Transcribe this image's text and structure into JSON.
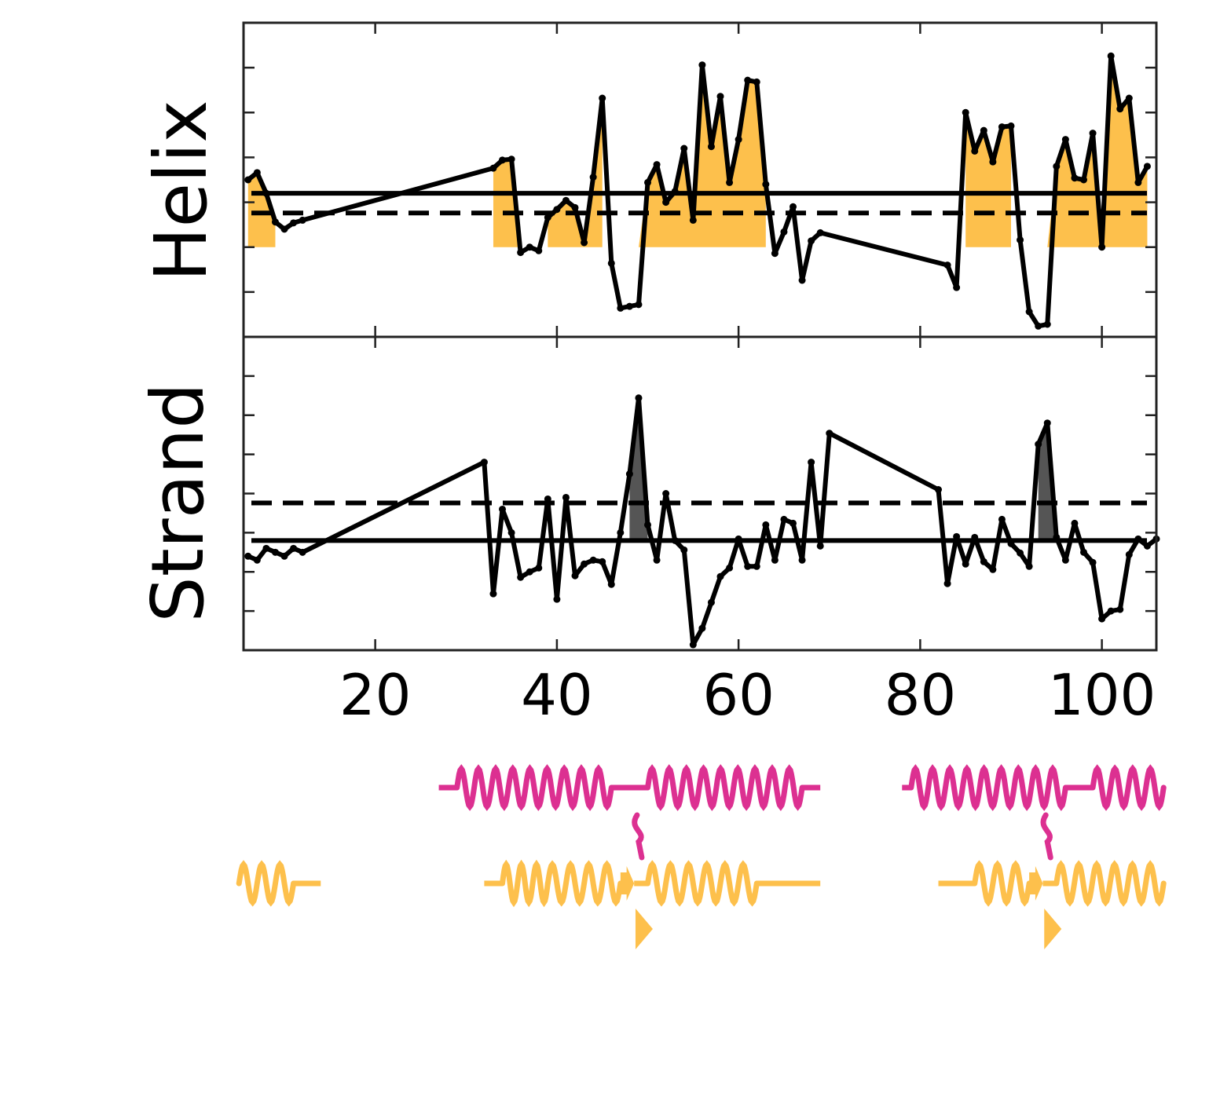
{
  "chart_data": [
    {
      "type": "line",
      "ylabel": "Helix",
      "xlim": [
        5.5,
        106
      ],
      "ylim": [
        -1.0,
        2.5
      ],
      "y_ticks": [
        -0.5,
        0,
        0.5,
        1.0,
        1.5,
        2.0
      ],
      "show_y_tick_labels": false,
      "x": [
        6,
        7,
        8,
        9,
        10,
        11,
        12,
        33,
        34,
        35,
        36,
        37,
        38,
        39,
        40,
        41,
        42,
        43,
        44,
        45,
        46,
        47,
        48,
        49,
        50,
        51,
        52,
        53,
        54,
        55,
        56,
        57,
        58,
        59,
        60,
        61,
        62,
        63,
        64,
        65,
        66,
        67,
        68,
        69,
        83,
        84,
        85,
        86,
        87,
        88,
        89,
        90,
        91,
        92,
        93,
        94,
        95,
        96,
        97,
        98,
        99,
        100,
        101,
        102,
        103,
        104,
        105
      ],
      "values": [
        0.75,
        0.83,
        0.6,
        0.28,
        0.2,
        0.27,
        0.3,
        0.88,
        0.97,
        0.98,
        -0.06,
        0.0,
        -0.04,
        0.33,
        0.42,
        0.52,
        0.44,
        0.05,
        0.78,
        1.66,
        -0.18,
        -0.68,
        -0.66,
        -0.64,
        0.72,
        0.92,
        0.5,
        0.62,
        1.1,
        0.3,
        2.03,
        1.12,
        1.68,
        0.72,
        1.2,
        1.86,
        1.84,
        0.7,
        -0.07,
        0.17,
        0.45,
        -0.37,
        0.07,
        0.16,
        -0.2,
        -0.45,
        1.5,
        1.07,
        1.3,
        0.95,
        1.34,
        1.35,
        0.08,
        -0.72,
        -0.88,
        -0.86,
        0.9,
        1.2,
        0.77,
        0.75,
        1.27,
        0.0,
        2.13,
        1.54,
        1.66,
        0.72,
        0.9
      ],
      "reference_lines": [
        {
          "y": 0.6,
          "style": "solid"
        },
        {
          "y": 0.38,
          "style": "dashed"
        }
      ],
      "fill_threshold": 0.0,
      "fill_regions_x": [
        [
          6,
          9
        ],
        [
          33,
          36
        ],
        [
          39,
          45
        ],
        [
          49,
          63
        ],
        [
          85,
          90
        ],
        [
          94,
          105
        ]
      ],
      "fill_color": "#fdc04c",
      "line_color": "#000000"
    },
    {
      "type": "line",
      "ylabel": "Strand",
      "xlim": [
        5.5,
        106
      ],
      "ylim": [
        -1.0,
        3.0
      ],
      "x_ticks": [
        20,
        40,
        60,
        80,
        100
      ],
      "x_tick_labels": [
        "20",
        "40",
        "60",
        "80",
        "100"
      ],
      "y_ticks": [
        -0.5,
        0,
        0.5,
        1.0,
        1.5,
        2.0,
        2.5
      ],
      "show_y_tick_labels": false,
      "x": [
        6,
        7,
        8,
        9,
        10,
        11,
        12,
        32,
        33,
        34,
        35,
        36,
        37,
        38,
        39,
        40,
        41,
        42,
        43,
        44,
        45,
        46,
        47,
        48,
        49,
        50,
        51,
        52,
        53,
        54,
        55,
        56,
        57,
        58,
        59,
        60,
        61,
        62,
        63,
        64,
        65,
        66,
        67,
        68,
        69,
        70,
        82,
        83,
        84,
        85,
        86,
        87,
        88,
        89,
        90,
        91,
        92,
        93,
        94,
        95,
        96,
        97,
        98,
        99,
        100,
        101,
        102,
        103,
        104,
        105,
        106
      ],
      "values": [
        0.2,
        0.15,
        0.3,
        0.25,
        0.2,
        0.3,
        0.25,
        1.4,
        -0.28,
        0.8,
        0.5,
        -0.07,
        0.0,
        0.05,
        0.93,
        -0.35,
        0.95,
        -0.05,
        0.1,
        0.15,
        0.13,
        -0.16,
        0.5,
        1.25,
        2.22,
        0.6,
        0.15,
        1.0,
        0.4,
        0.28,
        -0.93,
        -0.72,
        -0.39,
        -0.06,
        0.05,
        0.42,
        0.07,
        0.07,
        0.6,
        0.15,
        0.67,
        0.62,
        0.15,
        1.4,
        0.33,
        1.77,
        1.05,
        -0.15,
        0.45,
        0.1,
        0.44,
        0.13,
        0.03,
        0.67,
        0.36,
        0.24,
        0.07,
        1.63,
        1.9,
        0.44,
        0.15,
        0.62,
        0.25,
        0.12,
        -0.6,
        -0.5,
        -0.48,
        0.22,
        0.42,
        0.33,
        0.42
      ],
      "reference_lines": [
        {
          "y": 0.4,
          "style": "solid"
        },
        {
          "y": 0.88,
          "style": "dashed"
        }
      ],
      "fill_threshold": 0.4,
      "fill_regions_x": [
        [
          48,
          50
        ],
        [
          93,
          95
        ]
      ],
      "fill_color": "#555555",
      "line_color": "#000000"
    }
  ],
  "secondary_structure_tracks": [
    {
      "color": "#dc3091",
      "segments": [
        {
          "type": "coil",
          "start": 27,
          "end": 29
        },
        {
          "type": "helix",
          "start": 29,
          "end": 46
        },
        {
          "type": "coil",
          "start": 46,
          "end": 50
        },
        {
          "type": "helix",
          "start": 50,
          "end": 67
        },
        {
          "type": "coil",
          "start": 67,
          "end": 69
        },
        {
          "type": "coil",
          "start": 78,
          "end": 79
        },
        {
          "type": "helix",
          "start": 79,
          "end": 96
        },
        {
          "type": "coil",
          "start": 96,
          "end": 99
        },
        {
          "type": "helix",
          "start": 99,
          "end": 107
        }
      ],
      "small_marks": [
        {
          "type": "turn",
          "x": 49
        },
        {
          "type": "turn",
          "x": 94
        }
      ]
    },
    {
      "color": "#fdc04c",
      "segments": [
        {
          "type": "helix",
          "start": 5,
          "end": 11
        },
        {
          "type": "coil",
          "start": 11,
          "end": 14
        },
        {
          "type": "coil",
          "start": 32,
          "end": 34
        },
        {
          "type": "helix",
          "start": 34,
          "end": 39
        },
        {
          "type": "helix",
          "start": 39,
          "end": 47
        },
        {
          "type": "strand",
          "start": 47,
          "end": 48.5
        },
        {
          "type": "coil",
          "start": 48.5,
          "end": 50
        },
        {
          "type": "helix",
          "start": 50,
          "end": 62
        },
        {
          "type": "coil",
          "start": 62,
          "end": 69
        },
        {
          "type": "coil",
          "start": 82,
          "end": 86
        },
        {
          "type": "helix",
          "start": 86,
          "end": 92
        },
        {
          "type": "strand",
          "start": 92,
          "end": 93.5
        },
        {
          "type": "coil",
          "start": 93.5,
          "end": 95
        },
        {
          "type": "helix",
          "start": 95,
          "end": 107
        }
      ],
      "small_marks": [
        {
          "type": "strand",
          "x": 49
        },
        {
          "type": "strand",
          "x": 94
        }
      ]
    }
  ]
}
